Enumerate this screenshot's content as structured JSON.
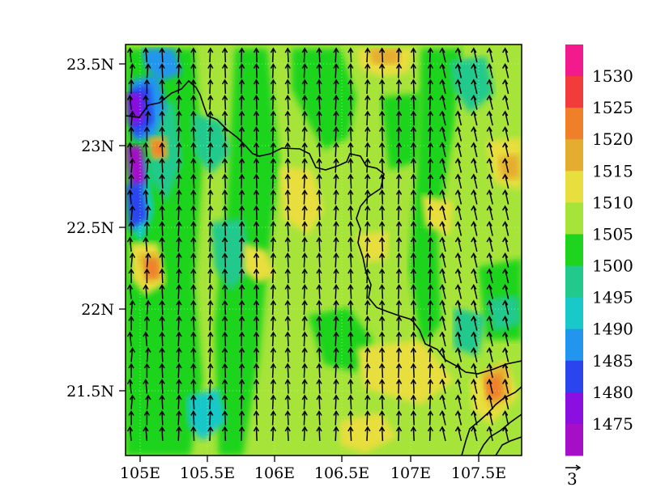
{
  "map": {
    "field": "geopotential height contours with wind vectors",
    "lon_range": [
      104.92,
      107.85
    ],
    "lat_range": [
      21.1,
      23.65
    ],
    "x_ticks": [
      {
        "value": 105.0,
        "label": "105E"
      },
      {
        "value": 105.5,
        "label": "105.5E"
      },
      {
        "value": 106.0,
        "label": "106E"
      },
      {
        "value": 106.5,
        "label": "106.5E"
      },
      {
        "value": 107.0,
        "label": "107E"
      },
      {
        "value": 107.5,
        "label": "107.5E"
      }
    ],
    "y_ticks": [
      {
        "value": 23.5,
        "label": "23.5N"
      },
      {
        "value": 23.0,
        "label": "23N"
      },
      {
        "value": 22.5,
        "label": "22.5N"
      },
      {
        "value": 22.0,
        "label": "22N"
      },
      {
        "value": 21.5,
        "label": "21.5N"
      }
    ],
    "wind_direction": "southerly",
    "reference_vector_label": "3"
  },
  "colorbar": {
    "labels": [
      "1530",
      "1525",
      "1520",
      "1515",
      "1510",
      "1505",
      "1500",
      "1495",
      "1490",
      "1485",
      "1480",
      "1475"
    ],
    "colors_top_to_bottom": [
      "#f21a8c",
      "#f23c3c",
      "#f07f2a",
      "#e5ad2f",
      "#e8de3e",
      "#a6e43a",
      "#1ed41e",
      "#21c98c",
      "#19c8c8",
      "#2296ee",
      "#2a45ee",
      "#8a0fe0",
      "#a50fc8"
    ]
  },
  "field_bins": [
    {
      "label": "1475",
      "color": "#a50fc8"
    },
    {
      "label": "1480",
      "color": "#8a0fe0"
    },
    {
      "label": "1485",
      "color": "#2a45ee"
    },
    {
      "label": "1490",
      "color": "#2296ee"
    },
    {
      "label": "1495",
      "color": "#19c8c8"
    },
    {
      "label": "1500",
      "color": "#21c98c"
    },
    {
      "label": "1505",
      "color": "#1ed41e"
    },
    {
      "label": "1510",
      "color": "#a6e43a"
    },
    {
      "label": "1515",
      "color": "#e8de3e"
    },
    {
      "label": "1520",
      "color": "#e5ad2f"
    },
    {
      "label": "1525",
      "color": "#f07f2a"
    },
    {
      "label": "1530",
      "color": "#f23c3c"
    }
  ]
}
